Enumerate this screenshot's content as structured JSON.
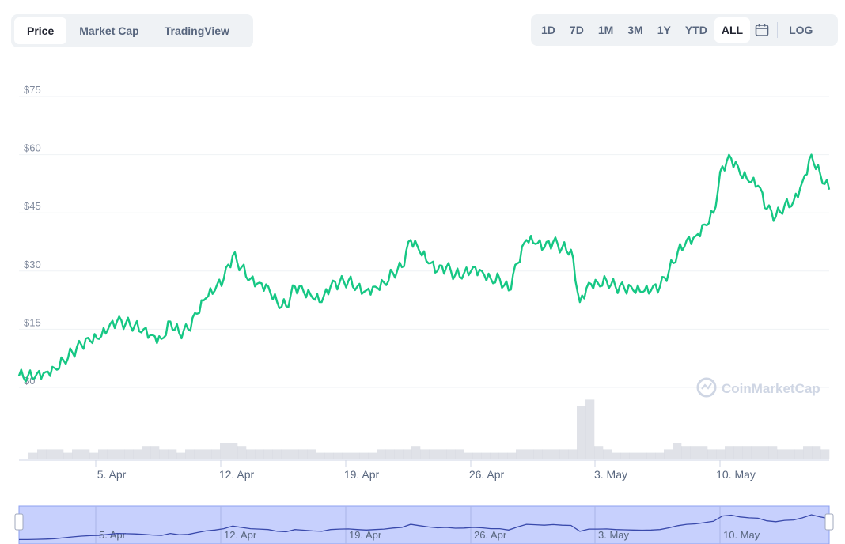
{
  "tabs": [
    "Price",
    "Market Cap",
    "TradingView"
  ],
  "active_tab": "Price",
  "ranges": [
    "1D",
    "7D",
    "1M",
    "3M",
    "1Y",
    "YTD",
    "ALL"
  ],
  "active_range": "ALL",
  "log_label": "LOG",
  "watermark": "CoinMarketCap",
  "colors": {
    "line": "#16c784",
    "volume": "#c7cad6",
    "navigator_fill": "#c7d0fd",
    "navigator_line": "#3949ab",
    "grid": "#eff2f5"
  },
  "chart_data": {
    "type": "line",
    "y_ticks": [
      "$0",
      "$15",
      "$30",
      "$45",
      "$60",
      "$75"
    ],
    "ylim": [
      0,
      75
    ],
    "x_ticks": [
      "5. Apr",
      "12. Apr",
      "19. Apr",
      "26. Apr",
      "3. May",
      "10. May"
    ],
    "series": [
      {
        "values": [
          3,
          3,
          3.5,
          4,
          5,
          7,
          9,
          11,
          12,
          12.5,
          15,
          17,
          16.5,
          16,
          15,
          13.5,
          12.5,
          17,
          14,
          15,
          19,
          23,
          25,
          28,
          34,
          31,
          28,
          27,
          26,
          22,
          21,
          26,
          24.5,
          23,
          22,
          26,
          27,
          27.5,
          26,
          25,
          26,
          27,
          29.5,
          31,
          38,
          35,
          32,
          30,
          31,
          29,
          29.5,
          31,
          30,
          28,
          28,
          25,
          32,
          38,
          37,
          36,
          37.5,
          36,
          35.5,
          22,
          27,
          27,
          27.5,
          26,
          25.5,
          25,
          24.5,
          25,
          26,
          30,
          35,
          38,
          39,
          42,
          45,
          57,
          59,
          55,
          53,
          52,
          46,
          44,
          47,
          48,
          53,
          60,
          55,
          51
        ]
      },
      {
        "name": "Volume",
        "values": [
          2,
          3,
          3,
          3,
          2,
          3,
          3,
          2,
          3,
          3,
          3,
          3,
          3,
          4,
          4,
          3,
          3,
          2,
          3,
          3,
          3,
          3,
          5,
          5,
          4,
          3,
          3,
          3,
          3,
          3,
          3,
          3,
          3,
          2,
          2,
          2,
          2,
          2,
          2,
          2,
          3,
          3,
          3,
          3,
          4,
          3,
          3,
          3,
          3,
          3,
          2,
          2,
          2,
          2,
          2,
          2,
          3,
          3,
          3,
          3,
          3,
          3,
          3,
          16,
          18,
          4,
          3,
          2,
          2,
          2,
          2,
          2,
          2,
          3,
          5,
          4,
          4,
          4,
          3,
          3,
          4,
          4,
          4,
          4,
          4,
          4,
          3,
          3,
          3,
          4,
          4,
          3
        ]
      }
    ]
  }
}
